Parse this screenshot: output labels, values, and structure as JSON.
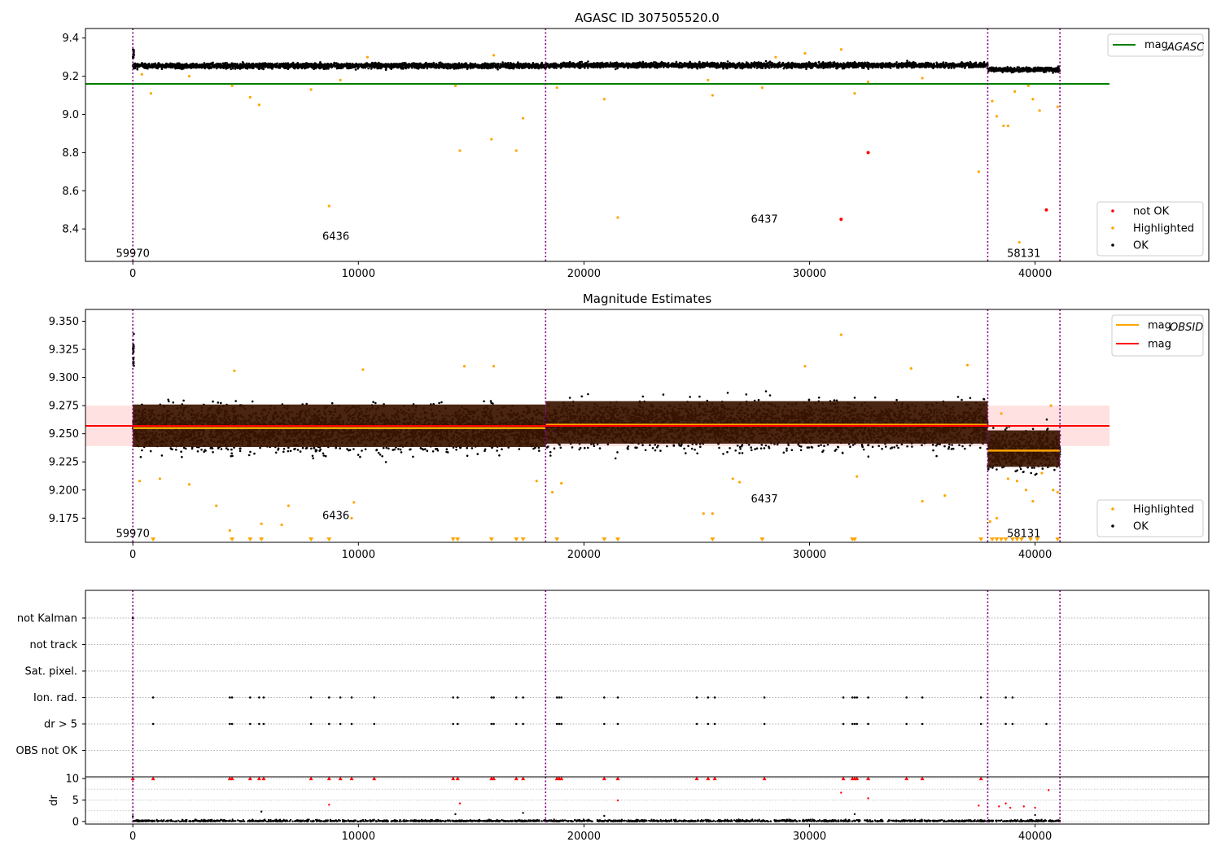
{
  "chart_data": [
    {
      "type": "scatter",
      "title": "AGASC ID 307505520.0",
      "xlabel": "",
      "ylabel": "",
      "xlim": [
        -2100,
        47700
      ],
      "ylim": [
        8.23,
        9.45
      ],
      "xticks": [
        0,
        10000,
        20000,
        30000,
        40000
      ],
      "yticks": [
        8.4,
        8.6,
        8.8,
        9.0,
        9.2,
        9.4
      ],
      "ytick_labels": [
        "8.4",
        "8.6",
        "8.8",
        "9.0",
        "9.2",
        "9.4"
      ],
      "reference_lines": [
        {
          "name": "mag_AGASC",
          "y": 9.16,
          "x_range": [
            -2100,
            43300
          ],
          "color": "#008000"
        }
      ],
      "obsid_boundaries": [
        0,
        18300,
        37900,
        41100
      ],
      "obsid_labels": [
        {
          "text": "59970",
          "x": 0,
          "y": 8.27
        },
        {
          "text": "6436",
          "x": 9000,
          "y": 8.36
        },
        {
          "text": "6437",
          "x": 28000,
          "y": 8.45
        },
        {
          "text": "58131",
          "x": 39500,
          "y": 8.27
        }
      ],
      "ok_bands": [
        {
          "x": [
            0,
            18300
          ],
          "center": 9.255,
          "half_width": 0.028
        },
        {
          "x": [
            18300,
            37900
          ],
          "center": 9.258,
          "half_width": 0.028
        },
        {
          "x": [
            37900,
            41100
          ],
          "center": 9.235,
          "half_width": 0.024
        }
      ],
      "highlighted_points": [
        [
          800,
          9.11
        ],
        [
          5200,
          9.09
        ],
        [
          5600,
          9.05
        ],
        [
          7900,
          9.13
        ],
        [
          8700,
          8.52
        ],
        [
          9200,
          9.18
        ],
        [
          14300,
          9.15
        ],
        [
          14500,
          8.81
        ],
        [
          15900,
          8.87
        ],
        [
          17000,
          8.81
        ],
        [
          17300,
          8.98
        ],
        [
          18800,
          9.14
        ],
        [
          20900,
          9.08
        ],
        [
          21500,
          8.46
        ],
        [
          25500,
          9.18
        ],
        [
          25700,
          9.1
        ],
        [
          27900,
          9.14
        ],
        [
          31400,
          9.34
        ],
        [
          32000,
          9.11
        ],
        [
          32600,
          9.17
        ],
        [
          37500,
          8.7
        ],
        [
          38100,
          9.07
        ],
        [
          38300,
          8.99
        ],
        [
          38600,
          8.94
        ],
        [
          38800,
          8.94
        ],
        [
          39100,
          9.12
        ],
        [
          39300,
          8.33
        ],
        [
          39700,
          9.15
        ],
        [
          39900,
          9.08
        ],
        [
          40200,
          9.02
        ],
        [
          41000,
          9.04
        ],
        [
          4400,
          9.15
        ],
        [
          2500,
          9.2
        ],
        [
          10400,
          9.3
        ],
        [
          28500,
          9.3
        ],
        [
          35000,
          9.19
        ],
        [
          400,
          9.21
        ],
        [
          29800,
          9.32
        ],
        [
          16000,
          9.31
        ]
      ],
      "not_ok_points": [
        [
          31400,
          8.45
        ],
        [
          32600,
          8.8
        ],
        [
          40500,
          8.5
        ]
      ],
      "legend": [
        {
          "label": "not OK",
          "color": "#ff0000"
        },
        {
          "label": "Highlighted",
          "color": "#ffa500"
        },
        {
          "label": "OK",
          "color": "#000000"
        }
      ],
      "legend_top": {
        "label": "mag",
        "subscript": "AGASC",
        "color": "#008000"
      },
      "legend_placement": "top-right / lower-right"
    },
    {
      "type": "scatter",
      "title": "Magnitude Estimates",
      "xlabel": "",
      "ylabel": "",
      "xlim": [
        -2100,
        47700
      ],
      "ylim": [
        9.1535,
        9.3605
      ],
      "xticks": [
        0,
        10000,
        20000,
        30000,
        40000
      ],
      "yticks": [
        9.175,
        9.2,
        9.225,
        9.25,
        9.275,
        9.3,
        9.325,
        9.35
      ],
      "ytick_labels": [
        "9.175",
        "9.200",
        "9.225",
        "9.250",
        "9.275",
        "9.300",
        "9.325",
        "9.350"
      ],
      "mag_line": {
        "y": 9.257,
        "color": "#ff0000"
      },
      "mag_band": {
        "y0": 9.239,
        "y1": 9.275,
        "x_range": [
          -2100,
          43300
        ]
      },
      "obsid_mag_lines": [
        {
          "x": [
            0,
            18300
          ],
          "y": 9.255
        },
        {
          "x": [
            18300,
            37900
          ],
          "y": 9.258
        },
        {
          "x": [
            37900,
            41100
          ],
          "y": 9.235
        }
      ],
      "obsid_boundaries": [
        0,
        18300,
        37900,
        41100
      ],
      "obsid_labels": [
        {
          "text": "59970",
          "x": 0,
          "y": 9.161
        },
        {
          "text": "6436",
          "x": 9000,
          "y": 9.177
        },
        {
          "text": "6437",
          "x": 28000,
          "y": 9.192
        },
        {
          "text": "58131",
          "x": 39500,
          "y": 9.161
        }
      ],
      "highlighted_points": [
        [
          4500,
          9.306
        ],
        [
          10200,
          9.307
        ],
        [
          14700,
          9.31
        ],
        [
          16000,
          9.31
        ],
        [
          31400,
          9.338
        ],
        [
          34500,
          9.308
        ],
        [
          29800,
          9.31
        ],
        [
          37000,
          9.311
        ],
        [
          300,
          9.208
        ],
        [
          1200,
          9.21
        ],
        [
          2500,
          9.205
        ],
        [
          3700,
          9.186
        ],
        [
          4300,
          9.164
        ],
        [
          5700,
          9.17
        ],
        [
          6600,
          9.169
        ],
        [
          6900,
          9.186
        ],
        [
          9800,
          9.189
        ],
        [
          9700,
          9.175
        ],
        [
          17900,
          9.208
        ],
        [
          18600,
          9.198
        ],
        [
          19000,
          9.206
        ],
        [
          25300,
          9.179
        ],
        [
          25700,
          9.179
        ],
        [
          26600,
          9.21
        ],
        [
          26900,
          9.207
        ],
        [
          32100,
          9.212
        ],
        [
          35000,
          9.19
        ],
        [
          36000,
          9.195
        ],
        [
          38000,
          9.172
        ],
        [
          38300,
          9.175
        ],
        [
          38800,
          9.21
        ],
        [
          39200,
          9.208
        ],
        [
          39600,
          9.2
        ],
        [
          40300,
          9.215
        ],
        [
          40800,
          9.2
        ],
        [
          41000,
          9.198
        ],
        [
          39900,
          9.19
        ],
        [
          40700,
          9.275
        ],
        [
          38500,
          9.268
        ]
      ],
      "clipped_low_x": [
        900,
        4400,
        5200,
        5700,
        7900,
        8700,
        14200,
        14400,
        15900,
        17000,
        17300,
        18800,
        20900,
        21500,
        25700,
        27900,
        31900,
        32000,
        37600,
        38100,
        38300,
        38500,
        38700,
        39000,
        39200,
        39400,
        39800,
        40100,
        41000
      ],
      "legend": [
        {
          "label": "Highlighted",
          "color": "#ffa500"
        },
        {
          "label": "OK",
          "color": "#000000"
        }
      ],
      "legend_top": [
        {
          "label": "mag",
          "subscript": "OBSID",
          "color": "#ffa500"
        },
        {
          "label": "mag",
          "subscript": "",
          "color": "#ff0000"
        }
      ]
    },
    {
      "type": "scatter",
      "title": "",
      "xlabel": "",
      "ylabel": "",
      "xlim": [
        -2100,
        47700
      ],
      "flag_rows": [
        "not Kalman",
        "not track",
        "Sat. pixel.",
        "Ion. rad.",
        "dr > 5",
        "OBS not OK"
      ],
      "ion_rad_x": [
        900,
        4300,
        4400,
        5200,
        5600,
        5800,
        7900,
        8700,
        9200,
        9700,
        10700,
        14200,
        14400,
        15900,
        16000,
        17000,
        17300,
        18800,
        18900,
        19000,
        20900,
        21500,
        25000,
        25500,
        25800,
        28000,
        31500,
        31900,
        32000,
        32100,
        32600,
        34300,
        35000,
        37600,
        38700,
        39000
      ],
      "dr5_x": [
        900,
        4300,
        4400,
        5200,
        5600,
        5800,
        7900,
        8700,
        9200,
        9700,
        10700,
        14200,
        14400,
        15900,
        16000,
        17000,
        17300,
        18800,
        18900,
        19000,
        20900,
        21500,
        25000,
        25500,
        25800,
        28000,
        31500,
        31900,
        32000,
        32100,
        32600,
        34300,
        35000,
        37600,
        38700,
        39000,
        40500
      ]
    },
    {
      "type": "scatter",
      "title": "",
      "xlabel": "",
      "ylabel": "dr",
      "xlim": [
        -2100,
        47700
      ],
      "ylim": [
        -0.6,
        10.4
      ],
      "xticks": [
        0,
        10000,
        20000,
        30000,
        40000
      ],
      "yticks": [
        0,
        5,
        10
      ],
      "ytick_labels": [
        "0",
        "5",
        "10"
      ],
      "dr_high_x": [
        0,
        900,
        4300,
        4400,
        5200,
        5600,
        5800,
        7900,
        8700,
        9200,
        9700,
        10700,
        14200,
        14400,
        15900,
        16000,
        17000,
        17300,
        18800,
        18900,
        19000,
        20900,
        21500,
        25000,
        25500,
        25800,
        28000,
        31500,
        31900,
        32000,
        32100,
        32600,
        34300,
        35000,
        37600
      ],
      "dr_red_mid": [
        [
          8700,
          3.9
        ],
        [
          14500,
          4.2
        ],
        [
          21500,
          4.9
        ],
        [
          31400,
          6.7
        ],
        [
          32600,
          5.4
        ],
        [
          37500,
          3.7
        ],
        [
          38400,
          3.5
        ],
        [
          38700,
          4.2
        ],
        [
          38900,
          3.2
        ],
        [
          39500,
          3.5
        ],
        [
          40000,
          3.2
        ],
        [
          40600,
          7.3
        ]
      ],
      "dr_black_mid": [
        [
          5700,
          2.3
        ],
        [
          14300,
          1.7
        ],
        [
          17300,
          2.0
        ],
        [
          20900,
          1.3
        ],
        [
          32000,
          1.7
        ],
        [
          40000,
          1.5
        ],
        [
          0,
          1.2
        ]
      ]
    }
  ],
  "colors": {
    "ok": "#000000",
    "highlighted": "#ffa500",
    "not_ok": "#ff0000",
    "boundary": "#800080",
    "agasc_line": "#008000",
    "mag_line": "#ff0000",
    "band_fill": "#ffb3b3"
  }
}
